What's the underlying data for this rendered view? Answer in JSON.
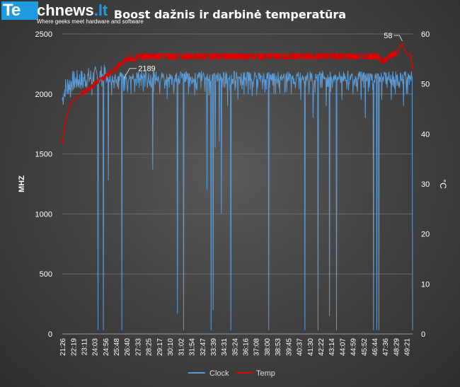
{
  "logo": {
    "mark": "Te",
    "name": "chnews",
    "tld": ".lt",
    "tagline": "Where geeks meet hardware and software"
  },
  "chart_data": {
    "type": "line",
    "title": "Boost dažnis ir darbinė temperatūra",
    "ylabel": "MHZ",
    "y2label": "°C",
    "xlabel": "",
    "ylim": [
      0,
      2500
    ],
    "y2lim": [
      0,
      60
    ],
    "yticks": [
      0,
      500,
      1000,
      1500,
      2000,
      2500
    ],
    "y2ticks": [
      0,
      10,
      20,
      30,
      40,
      50,
      60
    ],
    "grid": true,
    "legend_position": "bottom",
    "x_tick_labels": [
      "21:26",
      "22:19",
      "23:11",
      "24:03",
      "24:56",
      "25:48",
      "26:40",
      "27:33",
      "28:25",
      "29:17",
      "30:10",
      "31:02",
      "31:54",
      "32:47",
      "33:39",
      "34:31",
      "35:24",
      "36:16",
      "37:08",
      "38:00",
      "38:53",
      "39:45",
      "40:37",
      "41:30",
      "42:22",
      "43:14",
      "44:07",
      "44:59",
      "45:52",
      "46:44",
      "47:36",
      "48:29",
      "49:21"
    ],
    "x_end": "49:50",
    "series": [
      {
        "name": "Clock",
        "axis": "left",
        "color": "#5b9bd5",
        "baseline_range": [
          2100,
          2190
        ],
        "early": [
          [
            "21:26",
            1950
          ],
          [
            "21:40",
            2050
          ],
          [
            "22:10",
            2100
          ],
          [
            "23:30",
            2130
          ],
          [
            "25:00",
            2160
          ]
        ],
        "dips": [
          [
            "21:35",
            1980
          ],
          [
            "21:50",
            2000
          ],
          [
            "22:05",
            1970
          ],
          [
            "23:05",
            2050
          ],
          [
            "23:50",
            1990
          ],
          [
            "24:20",
            30
          ],
          [
            "24:45",
            30
          ],
          [
            "25:10",
            1280
          ],
          [
            "25:25",
            1990
          ],
          [
            "25:45",
            2090
          ],
          [
            "26:00",
            2040
          ],
          [
            "26:15",
            30
          ],
          [
            "26:30",
            2030
          ],
          [
            "27:00",
            2000
          ],
          [
            "27:40",
            2050
          ],
          [
            "28:00",
            2020
          ],
          [
            "28:20",
            2050
          ],
          [
            "28:45",
            1370
          ],
          [
            "29:20",
            2000
          ],
          [
            "29:55",
            1960
          ],
          [
            "30:30",
            2050
          ],
          [
            "30:45",
            170
          ],
          [
            "31:15",
            30
          ],
          [
            "31:40",
            2000
          ],
          [
            "32:10",
            1990
          ],
          [
            "32:40",
            2050
          ],
          [
            "33:10",
            1200
          ],
          [
            "33:30",
            30
          ],
          [
            "33:40",
            200
          ],
          [
            "33:50",
            1550
          ],
          [
            "34:10",
            1600
          ],
          [
            "34:20",
            1000
          ],
          [
            "34:35",
            2050
          ],
          [
            "34:50",
            1900
          ],
          [
            "35:05",
            30
          ],
          [
            "35:25",
            2030
          ],
          [
            "35:40",
            1950
          ],
          [
            "36:00",
            2040
          ],
          [
            "36:30",
            2000
          ],
          [
            "36:50",
            1980
          ],
          [
            "37:15",
            2050
          ],
          [
            "37:40",
            2040
          ],
          [
            "38:10",
            30
          ],
          [
            "38:35",
            2000
          ],
          [
            "39:00",
            2050
          ],
          [
            "39:30",
            2020
          ],
          [
            "40:00",
            2000
          ],
          [
            "40:20",
            2050
          ],
          [
            "40:45",
            1950
          ],
          [
            "41:05",
            30
          ],
          [
            "41:25",
            2000
          ],
          [
            "41:45",
            1800
          ],
          [
            "42:10",
            30
          ],
          [
            "42:30",
            2050
          ],
          [
            "42:50",
            1900
          ],
          [
            "43:05",
            150
          ],
          [
            "43:20",
            2050
          ],
          [
            "43:40",
            30
          ],
          [
            "44:05",
            1950
          ],
          [
            "44:30",
            2040
          ],
          [
            "45:00",
            2000
          ],
          [
            "45:20",
            2050
          ],
          [
            "45:40",
            1950
          ],
          [
            "46:00",
            1800
          ],
          [
            "46:20",
            2050
          ],
          [
            "46:40",
            30
          ],
          [
            "46:55",
            30
          ],
          [
            "47:05",
            30
          ],
          [
            "47:20",
            1950
          ],
          [
            "47:45",
            2050
          ],
          [
            "48:05",
            1950
          ],
          [
            "48:25",
            2000
          ],
          [
            "48:45",
            2050
          ],
          [
            "49:05",
            1900
          ],
          [
            "49:25",
            2000
          ],
          [
            "49:50",
            30
          ]
        ],
        "annotations": [
          {
            "x": "26:40",
            "value": 2189,
            "label": "2189"
          }
        ]
      },
      {
        "name": "Temp",
        "axis": "right",
        "color": "#e00000",
        "points": [
          [
            "21:26",
            38
          ],
          [
            "21:35",
            41
          ],
          [
            "21:50",
            44
          ],
          [
            "22:05",
            46
          ],
          [
            "22:30",
            47
          ],
          [
            "23:00",
            48
          ],
          [
            "23:30",
            49
          ],
          [
            "24:00",
            50
          ],
          [
            "24:40",
            51
          ],
          [
            "25:10",
            52
          ],
          [
            "25:40",
            53
          ],
          [
            "26:10",
            54
          ],
          [
            "26:40",
            55
          ],
          [
            "27:20",
            55
          ],
          [
            "27:40",
            56
          ],
          [
            "30:00",
            56
          ],
          [
            "32:00",
            56
          ],
          [
            "34:00",
            56
          ],
          [
            "36:00",
            56
          ],
          [
            "38:00",
            56
          ],
          [
            "40:00",
            56
          ],
          [
            "42:00",
            56
          ],
          [
            "44:00",
            56
          ],
          [
            "46:00",
            56
          ],
          [
            "47:00",
            56
          ],
          [
            "47:30",
            55
          ],
          [
            "48:00",
            56
          ],
          [
            "48:40",
            57
          ],
          [
            "49:00",
            58
          ],
          [
            "49:20",
            56
          ],
          [
            "49:40",
            56
          ],
          [
            "49:50",
            53
          ]
        ],
        "annotations": [
          {
            "x": "49:00",
            "value": 58,
            "label": "58"
          }
        ]
      }
    ]
  }
}
